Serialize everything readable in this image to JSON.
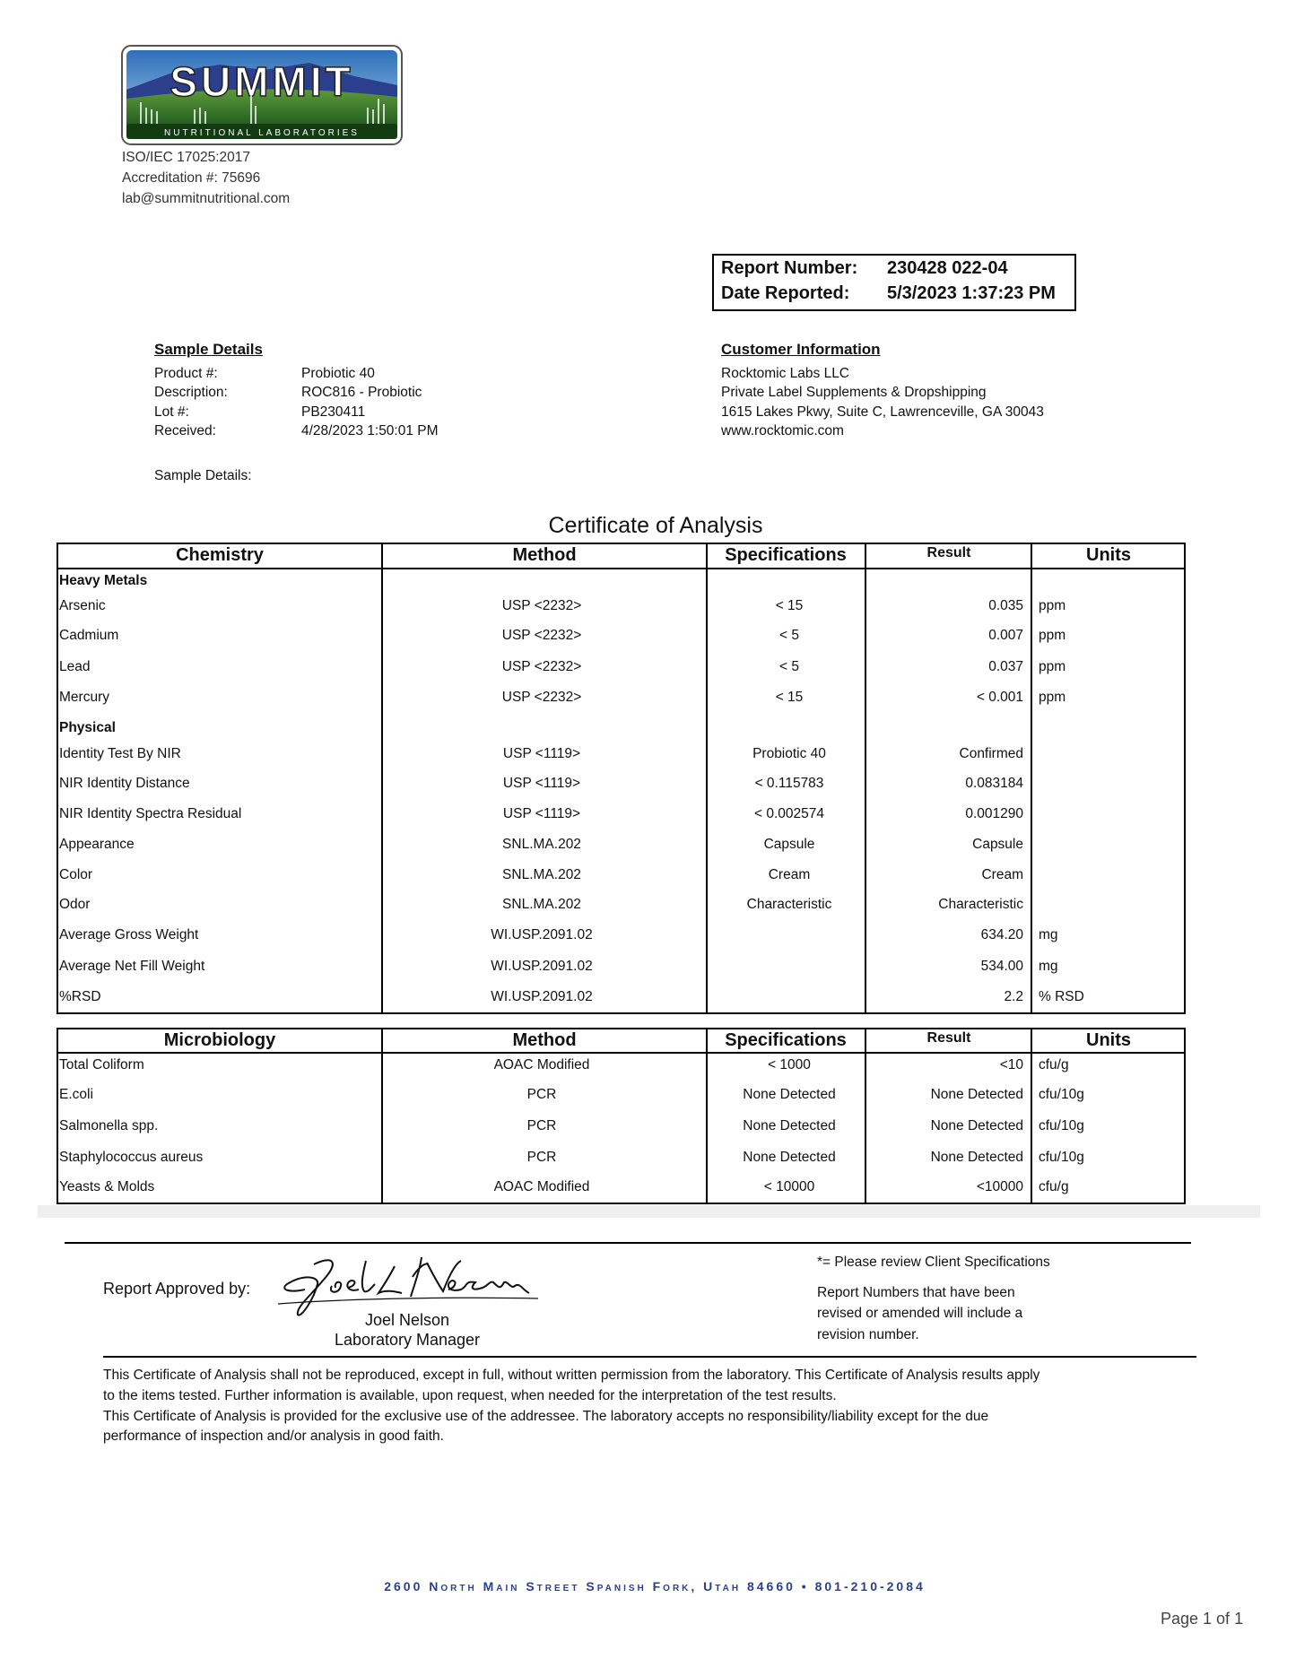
{
  "lab": {
    "logo_text": "SUMMIT",
    "logo_subtext": "NUTRITIONAL LABORATORIES",
    "iso": "ISO/IEC 17025:2017",
    "accreditation": "Accreditation #: 75696",
    "email": "lab@summitnutritional.com"
  },
  "report": {
    "number_label": "Report Number:",
    "number": "230428 022-04",
    "date_label": "Date Reported:",
    "date": "5/3/2023 1:37:23 PM"
  },
  "sample": {
    "heading": "Sample Details",
    "rows": [
      {
        "k": "Product #:",
        "v": "Probiotic 40"
      },
      {
        "k": "Description:",
        "v": "ROC816 - Probiotic"
      },
      {
        "k": "Lot #:",
        "v": "PB230411"
      },
      {
        "k": "Received:",
        "v": "4/28/2023 1:50:01 PM"
      }
    ],
    "details_label": "Sample Details:"
  },
  "customer": {
    "heading": "Customer Information",
    "lines": [
      "Rocktomic Labs LLC",
      "Private Label Supplements & Dropshipping",
      "1615 Lakes Pkwy, Suite C, Lawrenceville, GA 30043",
      "www.rocktomic.com"
    ]
  },
  "title": "Certificate of Analysis",
  "chemistry": {
    "headers": [
      "Chemistry",
      "Method",
      "Specifications",
      "Result",
      "Units"
    ],
    "rows": [
      {
        "section": "Heavy Metals"
      },
      {
        "name": "Arsenic",
        "method": "USP <2232>",
        "spec": "< 15",
        "result": "0.035",
        "units": "ppm"
      },
      {
        "name": "Cadmium",
        "method": "USP <2232>",
        "spec": "< 5",
        "result": "0.007",
        "units": "ppm"
      },
      {
        "name": "Lead",
        "method": "USP <2232>",
        "spec": "< 5",
        "result": "0.037",
        "units": "ppm"
      },
      {
        "name": "Mercury",
        "method": "USP <2232>",
        "spec": "< 15",
        "result": "< 0.001",
        "units": "ppm"
      },
      {
        "section": "Physical"
      },
      {
        "name": "Identity Test By NIR",
        "method": "USP <1119>",
        "spec": "Probiotic 40",
        "result": "Confirmed",
        "units": ""
      },
      {
        "name": "NIR Identity Distance",
        "method": "USP <1119>",
        "spec": "< 0.115783",
        "result": "0.083184",
        "units": ""
      },
      {
        "name": "NIR Identity Spectra Residual",
        "method": "USP <1119>",
        "spec": "< 0.002574",
        "result": "0.001290",
        "units": ""
      },
      {
        "name": "Appearance",
        "method": "SNL.MA.202",
        "spec": "Capsule",
        "result": "Capsule",
        "units": ""
      },
      {
        "name": "Color",
        "method": "SNL.MA.202",
        "spec": "Cream",
        "result": "Cream",
        "units": ""
      },
      {
        "name": "Odor",
        "method": "SNL.MA.202",
        "spec": "Characteristic",
        "result": "Characteristic",
        "units": ""
      },
      {
        "name": "Average Gross Weight",
        "method": "WI.USP.2091.02",
        "spec": "",
        "result": "634.20",
        "units": "mg"
      },
      {
        "name": "Average Net Fill Weight",
        "method": "WI.USP.2091.02",
        "spec": "",
        "result": "534.00",
        "units": "mg"
      },
      {
        "name": "%RSD",
        "method": "WI.USP.2091.02",
        "spec": "",
        "result": "2.2",
        "units": "% RSD"
      }
    ]
  },
  "microbiology": {
    "headers": [
      "Microbiology",
      "Method",
      "Specifications",
      "Result",
      "Units"
    ],
    "rows": [
      {
        "name": "Total Coliform",
        "method": "AOAC Modified",
        "spec": "< 1000",
        "result": "<10",
        "units": "cfu/g"
      },
      {
        "name": "E.coli",
        "method": "PCR",
        "spec": "None Detected",
        "result": "None Detected",
        "units": "cfu/10g"
      },
      {
        "name": "Salmonella spp.",
        "method": "PCR",
        "spec": "None Detected",
        "result": "None Detected",
        "units": "cfu/10g"
      },
      {
        "name": "Staphylococcus aureus",
        "method": "PCR",
        "spec": "None Detected",
        "result": "None Detected",
        "units": "cfu/10g"
      },
      {
        "name": "Yeasts & Molds",
        "method": "AOAC Modified",
        "spec": "< 10000",
        "result": "<10000",
        "units": "cfu/g"
      }
    ]
  },
  "approval": {
    "label": "Report Approved by:",
    "signature": "Joel L Nelson",
    "name": "Joel Nelson",
    "title": "Laboratory Manager"
  },
  "notes": {
    "client_spec": "*= Please review Client Specifications",
    "revision": [
      "Report Numbers that have been",
      "revised or amended will include a",
      "revision number."
    ]
  },
  "disclaimer": [
    "This Certificate of Analysis shall not be reproduced, except in full, without written permission from the laboratory. This Certificate of Analysis results apply",
    "to the items tested. Further information is available, upon request, when needed for the interpretation of the test results.",
    "This Certificate of Analysis is provided for the exclusive use of the addressee. The laboratory accepts no responsibility/liability except for the due",
    "performance of inspection and/or analysis in good faith."
  ],
  "footer": {
    "address": "2600 North Main Street Spanish Fork, Utah 84660 • 801-210-2084",
    "page": "Page 1 of 1"
  },
  "colors": {
    "footer_blue": "#2b3f8f",
    "logo_green": "#3c7a2a",
    "logo_sky": "#3a7fc4"
  }
}
